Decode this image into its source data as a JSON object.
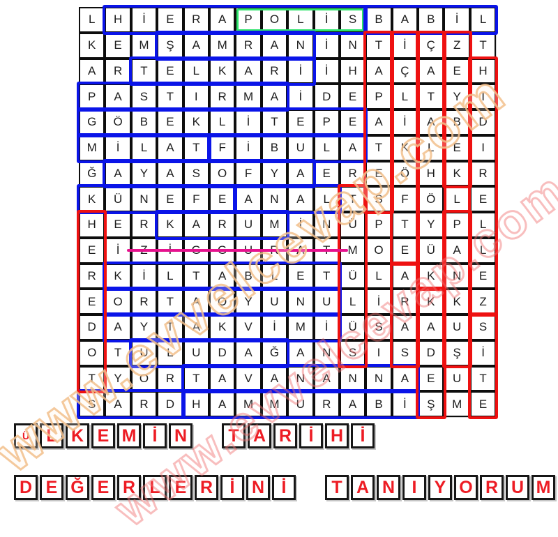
{
  "grid": {
    "rows": [
      [
        "L",
        "H",
        "İ",
        "E",
        "R",
        "A",
        "P",
        "O",
        "L",
        "İ",
        "S",
        "B",
        "A",
        "B",
        "İ",
        "L"
      ],
      [
        "K",
        "E",
        "M",
        "Ş",
        "A",
        "M",
        "R",
        "A",
        "N",
        "İ",
        "N",
        "T",
        "İ",
        "Ç",
        "Z",
        "T"
      ],
      [
        "A",
        "R",
        "T",
        "E",
        "L",
        "K",
        "A",
        "R",
        "İ",
        "İ",
        "H",
        "A",
        "Ç",
        "A",
        "E",
        "H"
      ],
      [
        "P",
        "A",
        "S",
        "T",
        "I",
        "R",
        "M",
        "A",
        "İ",
        "D",
        "E",
        "P",
        "L",
        "T",
        "Y",
        "I"
      ],
      [
        "G",
        "Ö",
        "B",
        "E",
        "K",
        "L",
        "İ",
        "T",
        "E",
        "P",
        "E",
        "A",
        "İ",
        "A",
        "B",
        "D"
      ],
      [
        "M",
        "İ",
        "L",
        "A",
        "T",
        "F",
        "İ",
        "B",
        "U",
        "L",
        "A",
        "T",
        "K",
        "L",
        "E",
        "I"
      ],
      [
        "Ğ",
        "A",
        "Y",
        "A",
        "S",
        "O",
        "F",
        "Y",
        "A",
        "E",
        "R",
        "E",
        "Ö",
        "H",
        "K",
        "R"
      ],
      [
        "K",
        "Ü",
        "N",
        "E",
        "F",
        "E",
        "A",
        "N",
        "A",
        "L",
        "T",
        "S",
        "F",
        "Ö",
        "L",
        "E"
      ],
      [
        "H",
        "E",
        "R",
        "K",
        "A",
        "R",
        "U",
        "M",
        "İ",
        "N",
        "Ü",
        "P",
        "T",
        "Y",
        "P",
        "L"
      ],
      [
        "E",
        "İ",
        "Z",
        "İ",
        "G",
        "G",
        "U",
        "R",
        "A",
        "T",
        "M",
        "O",
        "E",
        "Ü",
        "A",
        "L"
      ],
      [
        "R",
        "K",
        "İ",
        "L",
        "T",
        "A",
        "B",
        "L",
        "E",
        "T",
        "Ü",
        "L",
        "A",
        "K",
        "N",
        "E"
      ],
      [
        "E",
        "O",
        "R",
        "T",
        "A",
        "O",
        "Y",
        "U",
        "N",
        "U",
        "L",
        "İ",
        "R",
        "K",
        "K",
        "Z"
      ],
      [
        "D",
        "A",
        "Y",
        "T",
        "A",
        "K",
        "V",
        "İ",
        "M",
        "İ",
        "Ü",
        "S",
        "A",
        "A",
        "U",
        "S"
      ],
      [
        "O",
        "T",
        "U",
        "L",
        "U",
        "D",
        "A",
        "Ğ",
        "A",
        "N",
        "S",
        "I",
        "S",
        "D",
        "Ş",
        "İ"
      ],
      [
        "T",
        "Y",
        "O",
        "R",
        "T",
        "A",
        "V",
        "A",
        "N",
        "A",
        "N",
        "N",
        "A",
        "E",
        "U",
        "T"
      ],
      [
        "S",
        "A",
        "R",
        "D",
        "H",
        "A",
        "M",
        "M",
        "U",
        "R",
        "A",
        "B",
        "İ",
        "Ş",
        "M",
        "E"
      ]
    ]
  },
  "found_words": {
    "highlights": [
      {
        "word": "HİERAPOLİS",
        "color": "blue",
        "dir": "h",
        "row": 1,
        "from": 2,
        "to": 11
      },
      {
        "word": "POLİS",
        "color": "green",
        "dir": "h",
        "row": 1,
        "from": 7,
        "to": 11,
        "inset": true
      },
      {
        "word": "BABİL",
        "color": "blue",
        "dir": "h",
        "row": 1,
        "from": 12,
        "to": 16
      },
      {
        "word": "ŞAMRAN",
        "color": "blue",
        "dir": "h",
        "row": 2,
        "from": 4,
        "to": 9
      },
      {
        "word": "TELKARİ",
        "color": "blue",
        "dir": "h",
        "row": 3,
        "from": 3,
        "to": 9
      },
      {
        "word": "PASTIRMA",
        "color": "blue",
        "dir": "h",
        "row": 4,
        "from": 1,
        "to": 8
      },
      {
        "word": "GÖBEKLİTEPE",
        "color": "blue",
        "dir": "h",
        "row": 5,
        "from": 1,
        "to": 11
      },
      {
        "word": "MİLAT",
        "color": "blue",
        "dir": "h",
        "row": 6,
        "from": 1,
        "to": 5
      },
      {
        "word": "FİBULA",
        "color": "blue",
        "dir": "h",
        "row": 6,
        "from": 6,
        "to": 11
      },
      {
        "word": "AYASOFYA",
        "color": "blue",
        "dir": "h",
        "row": 7,
        "from": 2,
        "to": 9
      },
      {
        "word": "KÜNEFE",
        "color": "blue",
        "dir": "h",
        "row": 8,
        "from": 1,
        "to": 6
      },
      {
        "word": "ANAL",
        "color": "blue",
        "dir": "h",
        "row": 8,
        "from": 7,
        "to": 10
      },
      {
        "word": "KARUM",
        "color": "blue",
        "dir": "h",
        "row": 9,
        "from": 4,
        "to": 8
      },
      {
        "word": "KİLTABLET",
        "color": "blue",
        "dir": "h",
        "row": 11,
        "from": 2,
        "to": 10
      },
      {
        "word": "ORTAOYUNU",
        "color": "blue",
        "dir": "h",
        "row": 12,
        "from": 2,
        "to": 10
      },
      {
        "word": "AYTAKVİMİ",
        "color": "blue",
        "dir": "h",
        "row": 13,
        "from": 2,
        "to": 10
      },
      {
        "word": "ULUDAĞ",
        "color": "blue",
        "dir": "h",
        "row": 14,
        "from": 3,
        "to": 8
      },
      {
        "word": "TAVANANNA",
        "color": "blue",
        "dir": "h",
        "row": 15,
        "from": 5,
        "to": 13
      },
      {
        "word": "SARD",
        "color": "blue",
        "dir": "h",
        "row": 16,
        "from": 1,
        "to": 4
      },
      {
        "word": "HAMMURABİ",
        "color": "blue",
        "dir": "h",
        "row": 16,
        "from": 5,
        "to": 13
      },
      {
        "word": "HEREDOT",
        "color": "red",
        "dir": "v",
        "col": 1,
        "from": 9,
        "to": 15
      },
      {
        "word": "TÜMÜLÜS",
        "color": "red",
        "dir": "v",
        "col": 11,
        "from": 8,
        "to": 14
      },
      {
        "word": "TAPATES",
        "color": "red",
        "dir": "v",
        "col": 12,
        "from": 2,
        "to": 8
      },
      {
        "word": "İÇLİKÖFTE",
        "color": "red",
        "dir": "v",
        "col": 13,
        "from": 2,
        "to": 10
      },
      {
        "word": "ARAS",
        "color": "red",
        "dir": "v",
        "col": 13,
        "from": 11,
        "to": 14
      },
      {
        "word": "ÇATALHÖYÜK",
        "color": "red",
        "dir": "v",
        "col": 14,
        "from": 2,
        "to": 11
      },
      {
        "word": "KADEŞ",
        "color": "red",
        "dir": "v",
        "col": 14,
        "from": 12,
        "to": 16
      },
      {
        "word": "ZEYBEK",
        "color": "red",
        "dir": "v",
        "col": 15,
        "from": 2,
        "to": 7
      },
      {
        "word": "PANKUŞ",
        "color": "red",
        "dir": "v",
        "col": 15,
        "from": 9,
        "to": 14
      },
      {
        "word": "HIDIRELLEZ",
        "color": "red",
        "dir": "v",
        "col": 16,
        "from": 3,
        "to": 12
      },
      {
        "word": "SİTE",
        "color": "red",
        "dir": "v",
        "col": 16,
        "from": 13,
        "to": 16
      }
    ],
    "struck_through": {
      "word": "ZİGGURAT",
      "row": 10,
      "from": 3,
      "to": 10,
      "color": "#e6128e"
    }
  },
  "answer_lines": [
    {
      "words": [
        {
          "text": "ÜLKEMİN",
          "small_first_letter": true,
          "letters": [
            "Ü",
            "L",
            "K",
            "E",
            "M",
            "İ",
            "N"
          ]
        },
        {
          "text": "TARİHİ",
          "letters": [
            "T",
            "A",
            "R",
            "İ",
            "H",
            "İ"
          ]
        }
      ]
    },
    {
      "words": [
        {
          "text": "DEĞERLERİNİ",
          "letters": [
            "D",
            "E",
            "Ğ",
            "E",
            "R",
            "L",
            "E",
            "R",
            "İ",
            "N",
            "İ"
          ]
        },
        {
          "text": "TANIYORUM",
          "letters": [
            "T",
            "A",
            "N",
            "I",
            "Y",
            "O",
            "R",
            "U",
            "M"
          ]
        }
      ]
    }
  ],
  "colors": {
    "blue_box": "#0a14e8",
    "red_box": "#ee1111",
    "green_box": "#2ee36b",
    "strike_pink": "#e6128e",
    "answer_letter_red": "#ed1c24"
  },
  "watermarks": [
    {
      "text": "www.evvelcevap.com",
      "tone": "tan"
    },
    {
      "text": "www.evvelcevap.com",
      "tone": "red"
    }
  ]
}
